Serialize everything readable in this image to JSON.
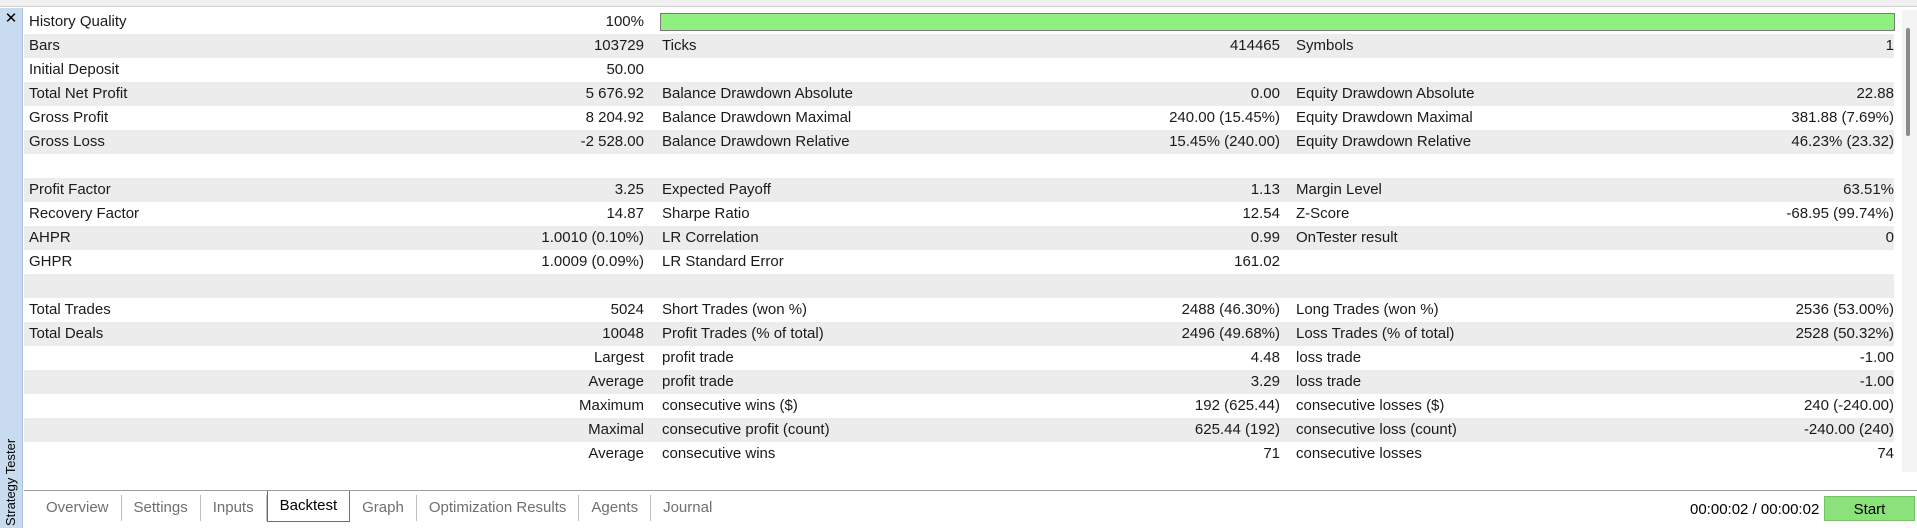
{
  "window": {
    "panel_title": "Strategy Tester",
    "close_glyph": "✕"
  },
  "history_quality": {
    "label": "History Quality",
    "value": "100%",
    "fraction": 1.0,
    "bar_color": "#8ff080"
  },
  "rows": [
    {
      "c1": [
        "Bars",
        "103729"
      ],
      "c2": [
        "Ticks",
        "414465"
      ],
      "c3": [
        "Symbols",
        "1"
      ]
    },
    {
      "c1": [
        "Initial Deposit",
        "50.00"
      ],
      "c2": [
        "",
        ""
      ],
      "c3": [
        "",
        ""
      ]
    },
    {
      "c1": [
        "Total Net Profit",
        "5 676.92"
      ],
      "c2": [
        "Balance Drawdown Absolute",
        "0.00"
      ],
      "c3": [
        "Equity Drawdown Absolute",
        "22.88"
      ]
    },
    {
      "c1": [
        "Gross Profit",
        "8 204.92"
      ],
      "c2": [
        "Balance Drawdown Maximal",
        "240.00 (15.45%)"
      ],
      "c3": [
        "Equity Drawdown Maximal",
        "381.88 (7.69%)"
      ]
    },
    {
      "c1": [
        "Gross Loss",
        "-2 528.00"
      ],
      "c2": [
        "Balance Drawdown Relative",
        "15.45% (240.00)"
      ],
      "c3": [
        "Equity Drawdown Relative",
        "46.23% (23.32)"
      ]
    },
    {
      "c1": [
        "",
        ""
      ],
      "c2": [
        "",
        ""
      ],
      "c3": [
        "",
        ""
      ]
    },
    {
      "c1": [
        "Profit Factor",
        "3.25"
      ],
      "c2": [
        "Expected Payoff",
        "1.13"
      ],
      "c3": [
        "Margin Level",
        "63.51%"
      ]
    },
    {
      "c1": [
        "Recovery Factor",
        "14.87"
      ],
      "c2": [
        "Sharpe Ratio",
        "12.54"
      ],
      "c3": [
        "Z-Score",
        "-68.95 (99.74%)"
      ]
    },
    {
      "c1": [
        "AHPR",
        "1.0010 (0.10%)"
      ],
      "c2": [
        "LR Correlation",
        "0.99"
      ],
      "c3": [
        "OnTester result",
        "0"
      ]
    },
    {
      "c1": [
        "GHPR",
        "1.0009 (0.09%)"
      ],
      "c2": [
        "LR Standard Error",
        "161.02"
      ],
      "c3": [
        "",
        ""
      ]
    },
    {
      "c1": [
        "",
        ""
      ],
      "c2": [
        "",
        ""
      ],
      "c3": [
        "",
        ""
      ]
    },
    {
      "c1": [
        "Total Trades",
        "5024"
      ],
      "c2": [
        "Short Trades (won %)",
        "2488 (46.30%)"
      ],
      "c3": [
        "Long Trades (won %)",
        "2536 (53.00%)"
      ]
    },
    {
      "c1": [
        "Total Deals",
        "10048"
      ],
      "c2": [
        "Profit Trades (% of total)",
        "2496 (49.68%)"
      ],
      "c3": [
        "Loss Trades (% of total)",
        "2528 (50.32%)"
      ]
    },
    {
      "c1": [
        "",
        "Largest"
      ],
      "c2": [
        "profit trade",
        "4.48"
      ],
      "c3": [
        "loss trade",
        "-1.00"
      ]
    },
    {
      "c1": [
        "",
        "Average"
      ],
      "c2": [
        "profit trade",
        "3.29"
      ],
      "c3": [
        "loss trade",
        "-1.00"
      ]
    },
    {
      "c1": [
        "",
        "Maximum"
      ],
      "c2": [
        "consecutive wins ($)",
        "192 (625.44)"
      ],
      "c3": [
        "consecutive losses ($)",
        "240 (-240.00)"
      ]
    },
    {
      "c1": [
        "",
        "Maximal"
      ],
      "c2": [
        "consecutive profit (count)",
        "625.44 (192)"
      ],
      "c3": [
        "consecutive loss (count)",
        "-240.00 (240)"
      ]
    },
    {
      "c1": [
        "",
        "Average"
      ],
      "c2": [
        "consecutive wins",
        "71"
      ],
      "c3": [
        "consecutive losses",
        "74"
      ]
    }
  ],
  "tabs": [
    {
      "label": "Overview",
      "active": false
    },
    {
      "label": "Settings",
      "active": false
    },
    {
      "label": "Inputs",
      "active": false
    },
    {
      "label": "Backtest",
      "active": true
    },
    {
      "label": "Graph",
      "active": false
    },
    {
      "label": "Optimization Results",
      "active": false
    },
    {
      "label": "Agents",
      "active": false
    },
    {
      "label": "Journal",
      "active": false
    }
  ],
  "footer": {
    "timer": "00:00:02 / 00:00:02",
    "start_label": "Start",
    "start_color": "#8ce27a"
  }
}
